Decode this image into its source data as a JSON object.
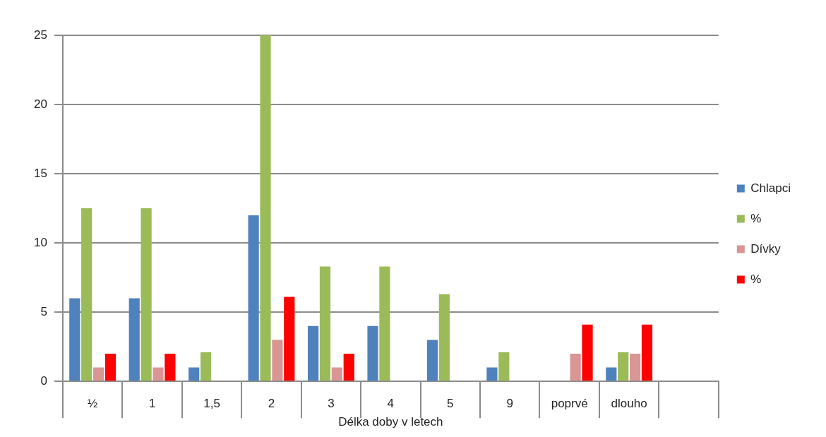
{
  "chart_data": {
    "type": "bar",
    "xlabel": "Délka doby v letech",
    "categories": [
      "½",
      "1",
      "1,5",
      "2",
      "3",
      "4",
      "5",
      "9",
      "poprvé",
      "dlouho",
      null
    ],
    "series": [
      {
        "name": "Chlapci",
        "color": "#4f81bd",
        "values": [
          6,
          6,
          1,
          12,
          4,
          4,
          3,
          1,
          0,
          1,
          null
        ]
      },
      {
        "name": "%",
        "color": "#9bbb59",
        "values": [
          12.5,
          12.5,
          2.1,
          25,
          8.3,
          8.3,
          6.3,
          2.1,
          0,
          2.1,
          null
        ]
      },
      {
        "name": "Dívky",
        "color": "#d99694",
        "values": [
          1,
          1,
          0,
          3,
          1,
          0,
          0,
          0,
          2,
          2,
          null
        ]
      },
      {
        "name": "%",
        "color": "#ff0000",
        "values": [
          2,
          2,
          0,
          6.1,
          2,
          0,
          0,
          0,
          4.1,
          4.1,
          null
        ]
      }
    ],
    "ylim": [
      0,
      25
    ],
    "yticks": [
      0,
      5,
      10,
      15,
      20,
      25
    ],
    "grid": "y",
    "legend": "right"
  }
}
